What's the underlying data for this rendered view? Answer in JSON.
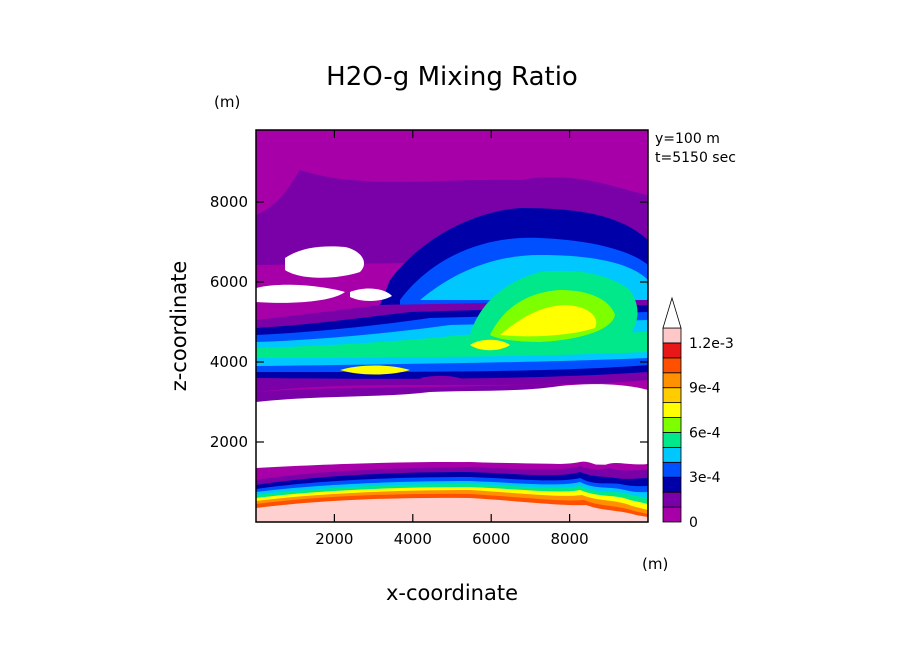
{
  "chart_data": {
    "type": "heatmap",
    "title": "H2O-g Mixing Ratio",
    "xlabel": "x-coordinate",
    "ylabel": "z-coordinate",
    "x_unit": "(m)",
    "y_unit": "(m)",
    "info": [
      "y=100 m",
      "t=5150 sec"
    ],
    "xlim": [
      0,
      10000
    ],
    "ylim": [
      0,
      9800
    ],
    "xticks": [
      2000,
      4000,
      6000,
      8000
    ],
    "yticks": [
      2000,
      4000,
      6000,
      8000
    ],
    "colorbar": {
      "labels": [
        "0",
        "3e-4",
        "6e-4",
        "9e-4",
        "1.2e-3"
      ],
      "label_values": [
        0,
        0.0003,
        0.0006,
        0.0009,
        0.0012
      ],
      "levels": [
        0,
        0.0001,
        0.0002,
        0.0003,
        0.0004,
        0.0005,
        0.0006,
        0.0007,
        0.0008,
        0.0009,
        0.001,
        0.0011,
        0.0012
      ],
      "colors": [
        "#a800a8",
        "#7a00a8",
        "#0000a8",
        "#0050ff",
        "#00c8ff",
        "#00e88a",
        "#7dff00",
        "#ffff00",
        "#ffcc00",
        "#ff9000",
        "#ff5000",
        "#e81818",
        "#ffc8c8"
      ],
      "extend_top_color": "#ffffff"
    },
    "colors": {
      "background_high": "#a800a8",
      "moist_band": "#00c8ff",
      "dry_layer": "#ffffff",
      "surface": "#ffd0d0"
    }
  }
}
